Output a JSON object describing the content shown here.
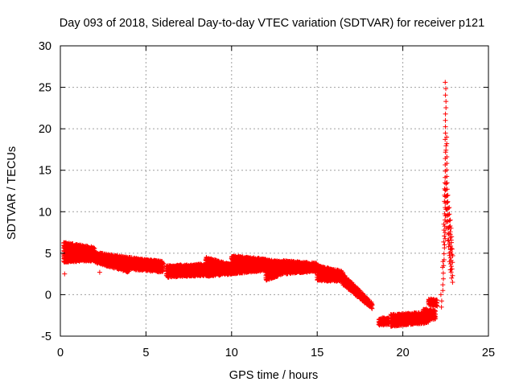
{
  "chart_data": {
    "type": "scatter",
    "title": "Day 093 of 2018, Sidereal Day-to-day VTEC variation (SDTVAR) for receiver p121",
    "xlabel": "GPS time / hours",
    "ylabel": "SDTVAR / TECUs",
    "xlim": [
      0,
      25
    ],
    "ylim": [
      -5,
      30
    ],
    "xticks": [
      0,
      5,
      10,
      15,
      20,
      25
    ],
    "yticks": [
      -5,
      0,
      5,
      10,
      15,
      20,
      25,
      30
    ],
    "grid": true,
    "marker": "+",
    "series": [
      {
        "name": "SDTVAR",
        "color": "#ff0000",
        "bands": [
          {
            "x0": 0.2,
            "x1": 2.0,
            "upper": [
              6.2,
              5.6
            ],
            "lower": [
              4.0,
              4.2
            ]
          },
          {
            "x0": 2.0,
            "x1": 4.0,
            "upper": [
              5.0,
              4.4
            ],
            "lower": [
              4.0,
              2.8
            ]
          },
          {
            "x0": 4.0,
            "x1": 6.0,
            "upper": [
              4.4,
              3.9
            ],
            "lower": [
              3.2,
              2.8
            ]
          },
          {
            "x0": 6.2,
            "x1": 8.5,
            "upper": [
              3.4,
              3.6
            ],
            "lower": [
              2.2,
              2.4
            ]
          },
          {
            "x0": 8.5,
            "x1": 10.0,
            "upper": [
              4.4,
              3.5
            ],
            "lower": [
              2.3,
              2.6
            ]
          },
          {
            "x0": 10.0,
            "x1": 12.0,
            "upper": [
              4.6,
              4.2
            ],
            "lower": [
              2.6,
              3.0
            ]
          },
          {
            "x0": 12.0,
            "x1": 13.0,
            "upper": [
              4.1,
              3.9
            ],
            "lower": [
              1.8,
              2.6
            ]
          },
          {
            "x0": 13.0,
            "x1": 15.0,
            "upper": [
              4.0,
              3.7
            ],
            "lower": [
              2.6,
              2.9
            ]
          },
          {
            "x0": 15.0,
            "x1": 16.5,
            "upper": [
              3.4,
              2.7
            ],
            "lower": [
              1.8,
              1.7
            ]
          },
          {
            "x0": 16.5,
            "x1": 18.2,
            "upper": [
              2.4,
              -1.1
            ],
            "lower": [
              1.3,
              -1.6
            ]
          },
          {
            "x0": 18.6,
            "x1": 19.2,
            "upper": [
              -3.0,
              -2.8
            ],
            "lower": [
              -3.6,
              -3.5
            ]
          },
          {
            "x0": 19.3,
            "x1": 21.5,
            "upper": [
              -2.5,
              -2.2
            ],
            "lower": [
              -3.7,
              -3.3
            ]
          },
          {
            "x0": 21.2,
            "x1": 21.9,
            "upper": [
              -1.8,
              -2.0
            ],
            "lower": [
              -2.8,
              -2.9
            ]
          },
          {
            "x0": 21.5,
            "x1": 22.0,
            "upper": [
              -0.6,
              -0.7
            ],
            "lower": [
              -1.1,
              -1.3
            ]
          }
        ],
        "outliers": [
          {
            "x": 0.25,
            "y": 2.5
          },
          {
            "x": 2.3,
            "y": 2.7
          }
        ],
        "spike": {
          "x": [
            22.25,
            22.35,
            22.4,
            22.45,
            22.5,
            22.55,
            22.6,
            22.65,
            22.7,
            22.75,
            22.8,
            22.85,
            22.9
          ],
          "upper": [
            0.0,
            4.0,
            8.5,
            13.5,
            25.6,
            19.0,
            13.5,
            12.0,
            10.5,
            9.0,
            8.0,
            7.0,
            5.5
          ],
          "lower": [
            -1.5,
            0.5,
            3.5,
            6.0,
            8.0,
            9.5,
            8.0,
            6.5,
            5.0,
            4.0,
            3.0,
            2.0,
            1.5
          ]
        }
      }
    ]
  }
}
